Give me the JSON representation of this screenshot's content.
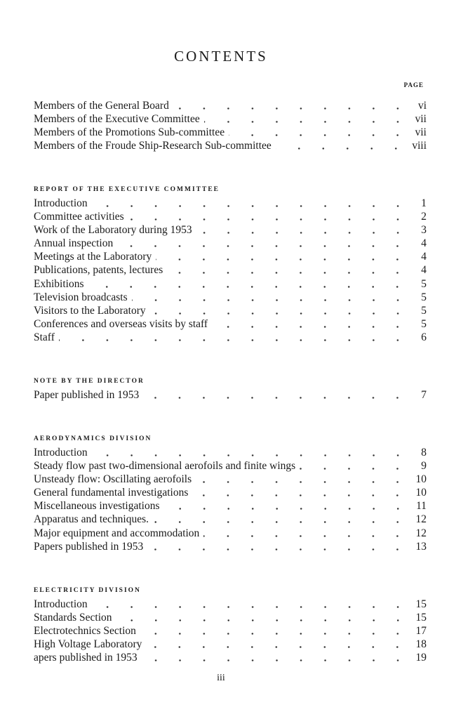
{
  "title": "CONTENTS",
  "page_header": "PAGE",
  "front_matter": [
    {
      "label": "Members of the General Board",
      "page": "vi"
    },
    {
      "label": "Members of the Executive Committee",
      "page": "vii"
    },
    {
      "label": "Members of the Promotions Sub-committee",
      "page": "vii"
    },
    {
      "label": "Members of the Froude Ship-Research Sub-committee",
      "page": "viii"
    }
  ],
  "sections": [
    {
      "heading": "REPORT OF THE EXECUTIVE COMMITTEE",
      "entries": [
        {
          "label": "Introduction",
          "page": "1"
        },
        {
          "label": "Committee activities",
          "page": "2"
        },
        {
          "label": "Work of the Laboratory during 1953",
          "page": "3"
        },
        {
          "label": "Annual inspection",
          "page": "4"
        },
        {
          "label": "Meetings at the Laboratory",
          "page": "4"
        },
        {
          "label": "Publications, patents, lectures",
          "page": "4"
        },
        {
          "label": "Exhibitions",
          "page": "5"
        },
        {
          "label": "Television broadcasts",
          "page": "5"
        },
        {
          "label": "Visitors to the Laboratory",
          "page": "5"
        },
        {
          "label": "Conferences and overseas visits by staff",
          "page": "5"
        },
        {
          "label": "Staff",
          "page": "6"
        }
      ]
    },
    {
      "heading": "NOTE BY THE DIRECTOR",
      "entries": [
        {
          "label": "Paper published in 1953",
          "page": "7"
        }
      ]
    },
    {
      "heading": "AERODYNAMICS DIVISION",
      "entries": [
        {
          "label": "Introduction",
          "page": "8"
        },
        {
          "label": "Steady flow past two-dimensional aerofoils and finite wings",
          "page": "9"
        },
        {
          "label": "Unsteady flow: Oscillating aerofoils",
          "page": "10"
        },
        {
          "label": "General fundamental investigations",
          "page": "10"
        },
        {
          "label": "Miscellaneous investigations",
          "page": "11"
        },
        {
          "label": "Apparatus and techniques.",
          "page": "12"
        },
        {
          "label": "Major equipment and accommodation",
          "page": "12"
        },
        {
          "label": "Papers published in 1953",
          "page": "13"
        }
      ]
    },
    {
      "heading": "ELECTRICITY DIVISION",
      "entries": [
        {
          "label": "Introduction",
          "page": "15"
        },
        {
          "label": "Standards Section",
          "page": "15"
        },
        {
          "label": "Electrotechnics Section",
          "page": "17"
        },
        {
          "label": "High Voltage Laboratory",
          "page": "18"
        },
        {
          "label": " apers published in 1953",
          "page": "19"
        }
      ]
    }
  ],
  "folio": "iii"
}
